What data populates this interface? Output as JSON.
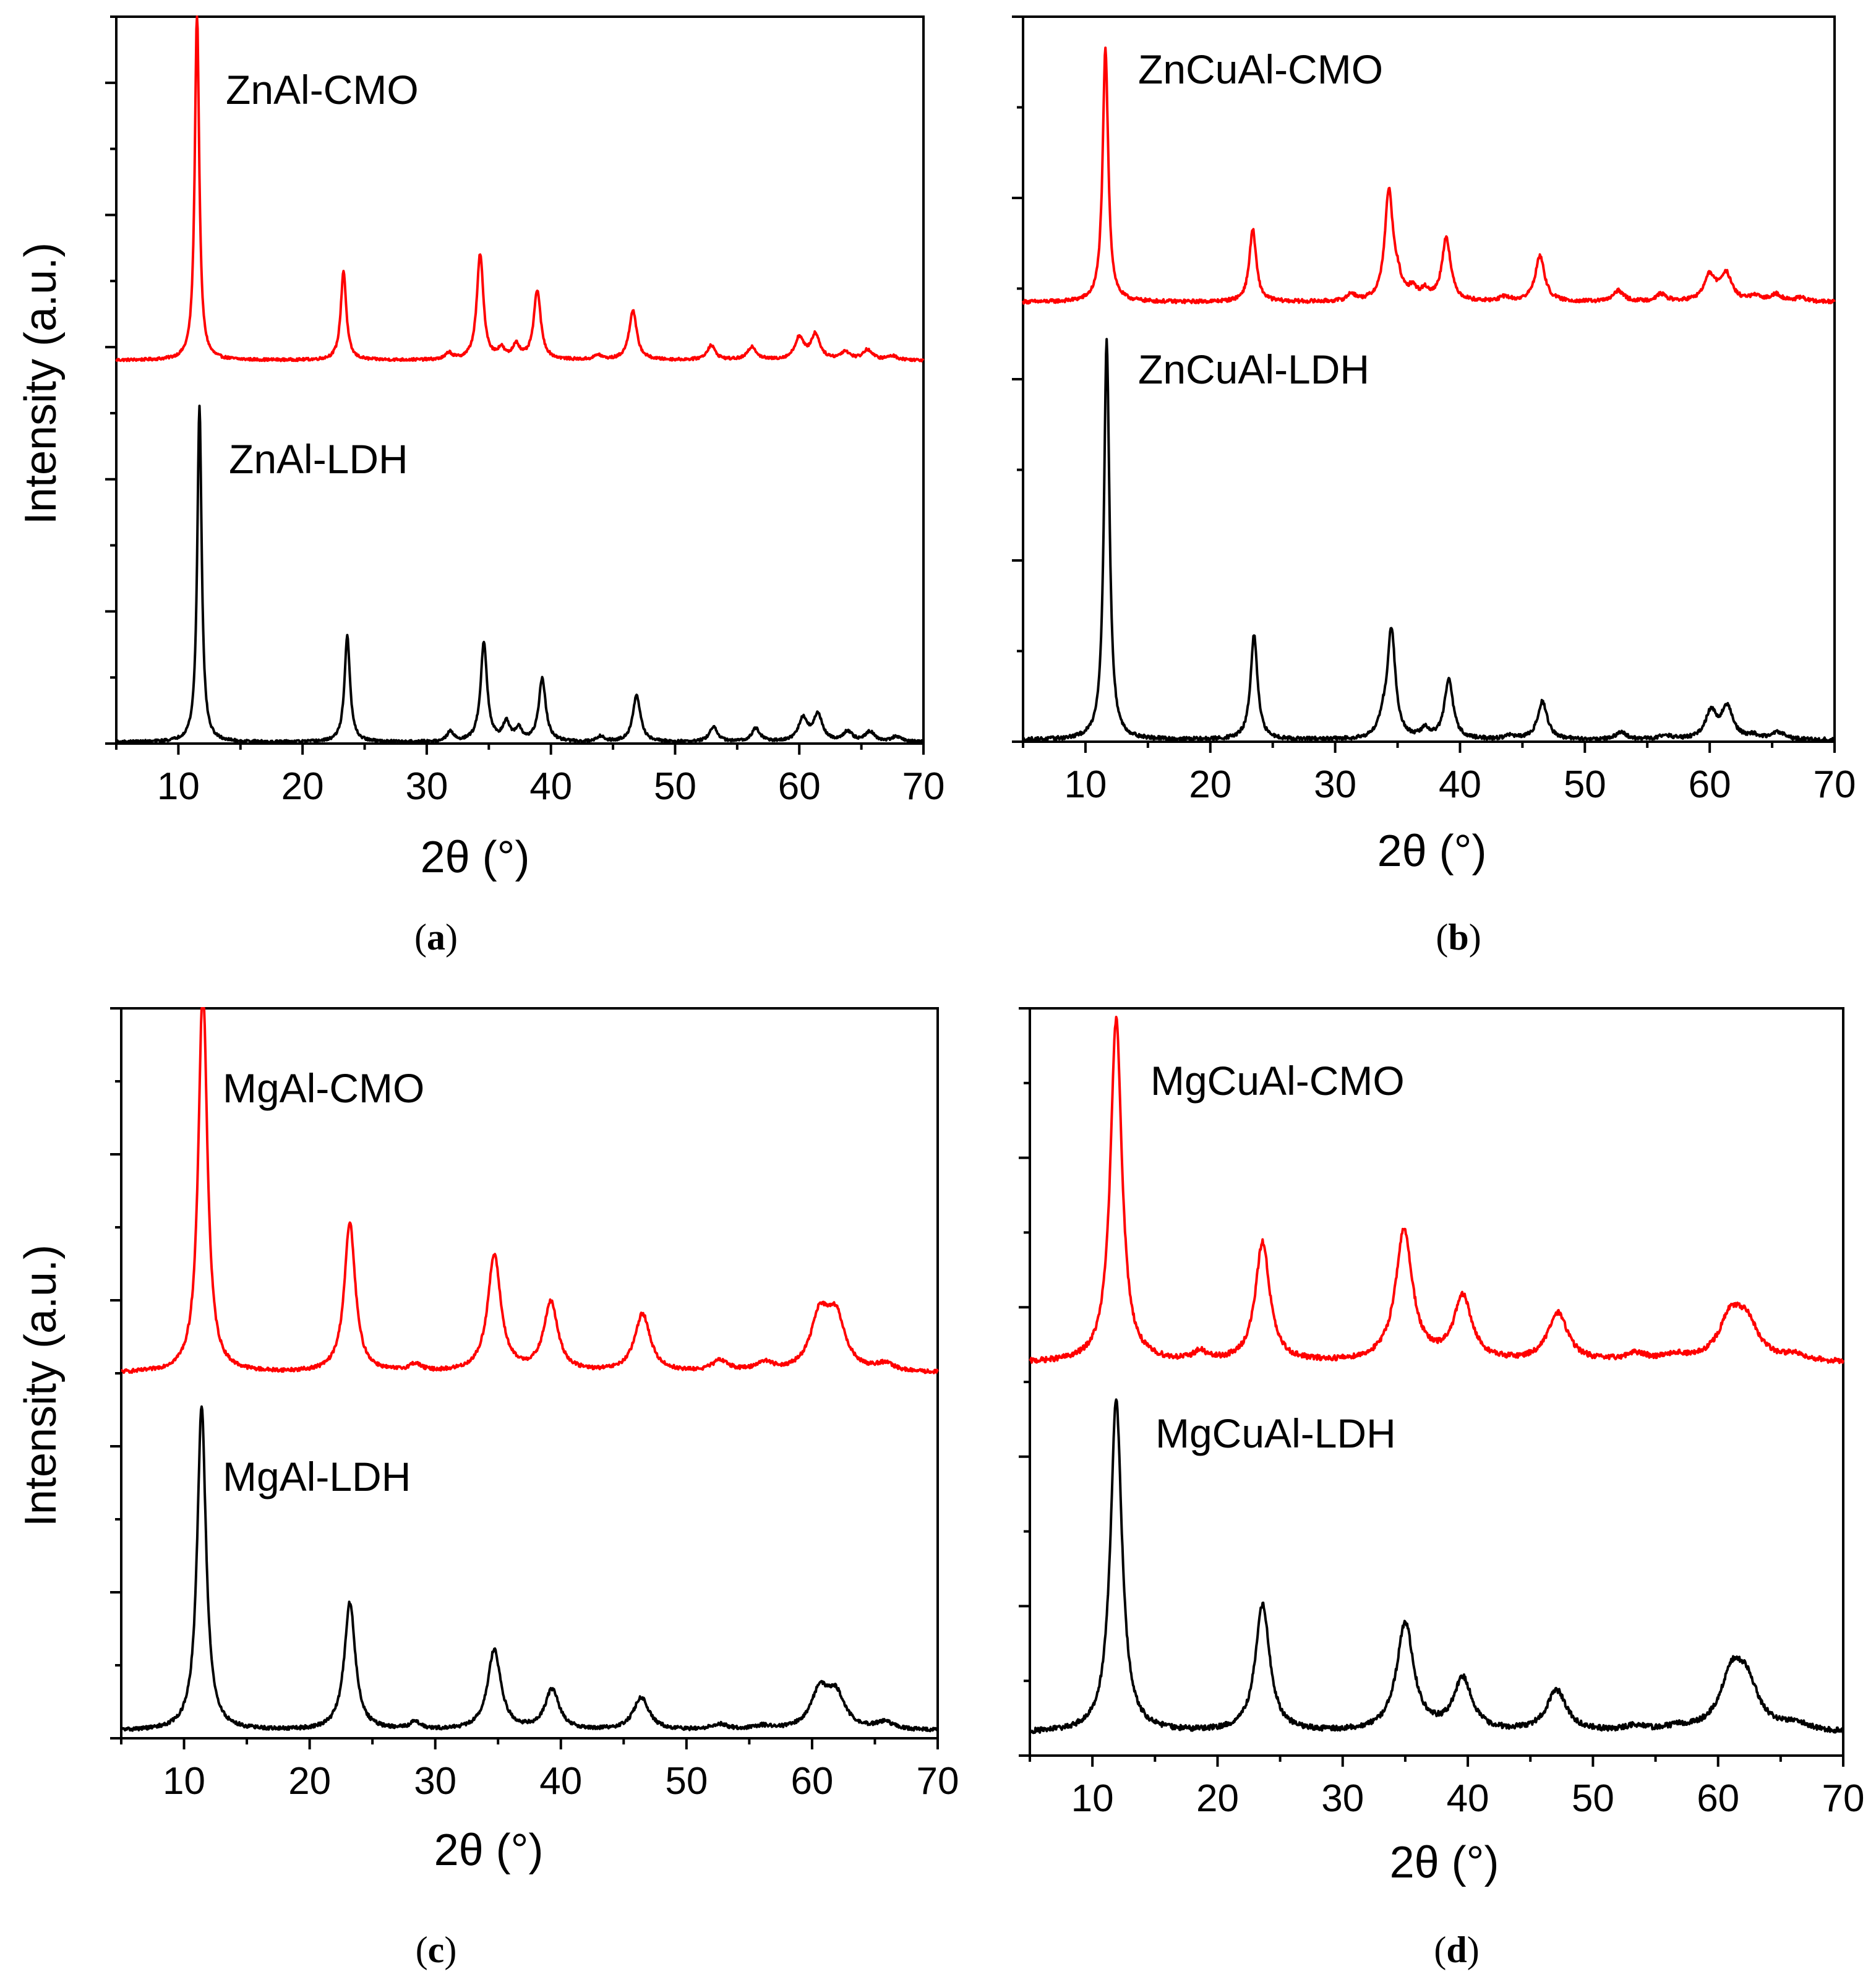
{
  "chart_data": [
    {
      "id": "a",
      "type": "line",
      "caption": "a",
      "xlabel": "2θ (°)",
      "ylabel": "Intensity (a.u.)",
      "xlim": [
        5,
        70
      ],
      "ylim": [
        0,
        11
      ],
      "xticks": [
        10,
        20,
        30,
        40,
        50,
        60,
        70
      ],
      "colors": {
        "top": "#ff0000",
        "bottom": "#000000"
      },
      "series": [
        {
          "name": "ZnAl-CMO",
          "baseline": 5.8,
          "width_scale": 1,
          "noise": 0.02,
          "peaks": [
            [
              11.5,
              5.3
            ],
            [
              23.3,
              1.35
            ],
            [
              31.8,
              0.1
            ],
            [
              34.3,
              1.6
            ],
            [
              36.0,
              0.15
            ],
            [
              37.2,
              0.22
            ],
            [
              38.9,
              1.05
            ],
            [
              43.8,
              0.07
            ],
            [
              46.6,
              0.75
            ],
            [
              52.9,
              0.22
            ],
            [
              56.2,
              0.2
            ],
            [
              60.0,
              0.33
            ],
            [
              61.3,
              0.38
            ],
            [
              63.7,
              0.12
            ],
            [
              65.5,
              0.15
            ],
            [
              67.5,
              0.06
            ]
          ]
        },
        {
          "name": "ZnAl-LDH",
          "baseline": 0.02,
          "width_scale": 1,
          "noise": 0.02,
          "peaks": [
            [
              11.7,
              5.1
            ],
            [
              23.6,
              1.6
            ],
            [
              31.9,
              0.15
            ],
            [
              34.6,
              1.5
            ],
            [
              36.4,
              0.28
            ],
            [
              37.4,
              0.18
            ],
            [
              39.3,
              0.95
            ],
            [
              44.0,
              0.08
            ],
            [
              46.9,
              0.7
            ],
            [
              53.1,
              0.22
            ],
            [
              56.5,
              0.2
            ],
            [
              60.3,
              0.35
            ],
            [
              61.5,
              0.4
            ],
            [
              63.9,
              0.15
            ],
            [
              65.7,
              0.15
            ],
            [
              67.8,
              0.08
            ]
          ]
        }
      ],
      "labels": [
        "ZnAl-CMO",
        "ZnAl-LDH"
      ]
    },
    {
      "id": "b",
      "type": "line",
      "caption": "b",
      "xlabel": "2θ (°)",
      "ylabel": "",
      "xlim": [
        5,
        70
      ],
      "ylim": [
        0,
        8
      ],
      "xticks": [
        10,
        20,
        30,
        40,
        50,
        60,
        70
      ],
      "colors": {
        "top": "#ff0000",
        "bottom": "#000000"
      },
      "series": [
        {
          "name": "ZnCuAl-CMO",
          "baseline": 4.85,
          "width_scale": 1.25,
          "noise": 0.02,
          "peaks": [
            [
              11.6,
              2.8
            ],
            [
              23.4,
              0.8
            ],
            [
              31.3,
              0.08
            ],
            [
              34.3,
              1.2
            ],
            [
              35.0,
              0.18
            ],
            [
              36.2,
              0.12
            ],
            [
              37.2,
              0.1
            ],
            [
              38.9,
              0.7
            ],
            [
              43.6,
              0.05
            ],
            [
              46.4,
              0.5
            ],
            [
              52.7,
              0.12
            ],
            [
              56.1,
              0.08
            ],
            [
              60.0,
              0.28
            ],
            [
              61.3,
              0.3
            ],
            [
              63.6,
              0.05
            ],
            [
              65.3,
              0.08
            ],
            [
              67.3,
              0.04
            ]
          ]
        },
        {
          "name": "ZnCuAl-LDH",
          "baseline": 0.02,
          "width_scale": 1.25,
          "noise": 0.02,
          "peaks": [
            [
              11.7,
              4.4
            ],
            [
              23.5,
              1.15
            ],
            [
              33.8,
              0.15
            ],
            [
              34.5,
              1.2
            ],
            [
              37.2,
              0.1
            ],
            [
              39.1,
              0.65
            ],
            [
              44.0,
              0.04
            ],
            [
              46.6,
              0.42
            ],
            [
              52.9,
              0.08
            ],
            [
              56.4,
              0.05
            ],
            [
              60.1,
              0.3
            ],
            [
              61.4,
              0.35
            ],
            [
              63.5,
              0.04
            ],
            [
              65.5,
              0.08
            ]
          ]
        }
      ],
      "labels": [
        "ZnCuAl-CMO",
        "ZnCuAl-LDH"
      ]
    },
    {
      "id": "c",
      "type": "line",
      "caption": "c",
      "xlabel": "2θ (°)",
      "ylabel": "Intensity (a.u.)",
      "xlim": [
        5,
        70
      ],
      "ylim": [
        0,
        10
      ],
      "xticks": [
        10,
        20,
        30,
        40,
        50,
        60,
        70
      ],
      "colors": {
        "top": "#ff0000",
        "bottom": "#000000"
      },
      "series": [
        {
          "name": "MgAl-CMO",
          "baseline": 5.0,
          "width_scale": 2.0,
          "noise": 0.025,
          "peaks": [
            [
              11.5,
              5.35
            ],
            [
              23.2,
              2.05
            ],
            [
              28.4,
              0.1
            ],
            [
              34.7,
              1.6
            ],
            [
              39.2,
              0.95
            ],
            [
              46.5,
              0.8
            ],
            [
              52.7,
              0.15
            ],
            [
              56.2,
              0.12
            ],
            [
              60.6,
              0.72
            ],
            [
              61.9,
              0.7
            ],
            [
              65.8,
              0.1
            ]
          ]
        },
        {
          "name": "MgAl-LDH",
          "baseline": 0.1,
          "width_scale": 2.0,
          "noise": 0.025,
          "peaks": [
            [
              11.4,
              4.45
            ],
            [
              23.2,
              1.75
            ],
            [
              28.4,
              0.1
            ],
            [
              34.7,
              1.1
            ],
            [
              39.3,
              0.55
            ],
            [
              46.4,
              0.45
            ],
            [
              52.6,
              0.08
            ],
            [
              56.0,
              0.05
            ],
            [
              60.6,
              0.5
            ],
            [
              61.9,
              0.45
            ],
            [
              65.8,
              0.1
            ]
          ]
        }
      ],
      "labels": [
        "MgAl-CMO",
        "MgAl-LDH"
      ]
    },
    {
      "id": "d",
      "type": "line",
      "caption": "d",
      "xlabel": "2θ (°)",
      "ylabel": "",
      "xlim": [
        5,
        70
      ],
      "ylim": [
        0,
        10
      ],
      "xticks": [
        10,
        20,
        30,
        40,
        50,
        60,
        70
      ],
      "colors": {
        "top": "#ff0000",
        "bottom": "#000000"
      },
      "series": [
        {
          "name": "MgCuAl-CMO",
          "baseline": 5.25,
          "width_scale": 2.6,
          "noise": 0.035,
          "peaks": [
            [
              11.9,
              4.6
            ],
            [
              18.6,
              0.12
            ],
            [
              23.6,
              1.6
            ],
            [
              34.9,
              1.75
            ],
            [
              39.6,
              0.85
            ],
            [
              47.2,
              0.65
            ],
            [
              53.4,
              0.1
            ],
            [
              56.5,
              0.08
            ],
            [
              61.0,
              0.55
            ],
            [
              62.3,
              0.45
            ],
            [
              66.2,
              0.08
            ]
          ]
        },
        {
          "name": "MgCuAl-LDH",
          "baseline": 0.3,
          "width_scale": 2.6,
          "noise": 0.035,
          "peaks": [
            [
              11.9,
              4.45
            ],
            [
              23.6,
              1.7
            ],
            [
              35.0,
              1.45
            ],
            [
              39.6,
              0.7
            ],
            [
              47.1,
              0.55
            ],
            [
              53.4,
              0.07
            ],
            [
              56.8,
              0.05
            ],
            [
              61.1,
              0.7
            ],
            [
              62.3,
              0.55
            ],
            [
              66.3,
              0.1
            ]
          ]
        }
      ],
      "labels": [
        "MgCuAl-CMO",
        "MgCuAl-LDH"
      ]
    }
  ]
}
